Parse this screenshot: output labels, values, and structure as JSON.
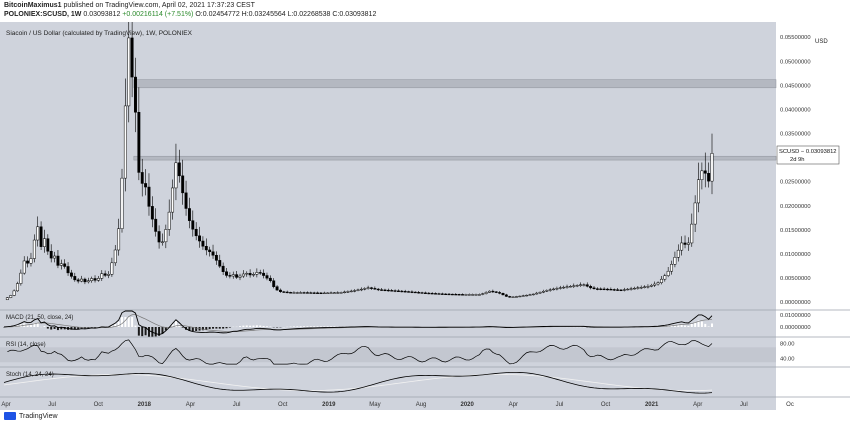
{
  "header": {
    "line1_author": "BitcoinMaximus1",
    "line1_rest": "published on TradingView.com, April 02, 2021 17:37:23 CEST",
    "symbol": "POLONIEX:SCUSD, 1W",
    "price": "0.03093812",
    "change": "+0.00216114 (+7.51%)",
    "ohlc": "O:0.02454772 H:0.03245564 L:0.02268538 C:0.03093812"
  },
  "footer": {
    "brand": "TradingView"
  },
  "colors": {
    "bg": "#cfd3dc",
    "zone": "#b4b8c1",
    "candle": "#000000",
    "hist": "#ffffff",
    "line": "#000000"
  },
  "chart_data": [
    {
      "type": "candlestick",
      "title": "Siacoin / US Dollar (calculated by TradingView), 1W, POLONIEX",
      "price_label": "SCUSD − 0.03093812",
      "price_sublabel": "2d 9h",
      "last_price": 0.03093812,
      "ylim": [
        -0.001,
        0.0565
      ],
      "y_ticks": [
        {
          "v": 0.055,
          "label": "0.05500000"
        },
        {
          "v": 0.05,
          "label": "0.05000000"
        },
        {
          "v": 0.045,
          "label": "0.04500000"
        },
        {
          "v": 0.04,
          "label": "0.04000000"
        },
        {
          "v": 0.035,
          "label": "0.03500000"
        },
        {
          "v": 0.025,
          "label": "0.02500000"
        },
        {
          "v": 0.02,
          "label": "0.02000000"
        },
        {
          "v": 0.015,
          "label": "0.01500000"
        },
        {
          "v": 0.01,
          "label": "0.01000000"
        },
        {
          "v": 0.005,
          "label": "0.00500000"
        },
        {
          "v": 0.0,
          "label": "0.00000000"
        }
      ],
      "currency_label": "USD",
      "resistance_zones": [
        [
          0.0445,
          0.0462
        ],
        [
          0.0295,
          0.0303
        ]
      ],
      "x_ticks": [
        "Apr",
        "Jul",
        "Oct",
        "2018",
        "Apr",
        "Jul",
        "Oct",
        "2019",
        "May",
        "Aug",
        "2020",
        "Apr",
        "Jul",
        "Oct",
        "2021",
        "Apr",
        "Jul",
        "Oc"
      ],
      "series": [
        {
          "t": 0,
          "v": 0.0005
        },
        {
          "t": 0.25,
          "v": 0.0008
        },
        {
          "t": 0.8,
          "v": 0.0015
        },
        {
          "t": 1.3,
          "v": 0.003
        },
        {
          "t": 1.8,
          "v": 0.006
        },
        {
          "t": 2.3,
          "v": 0.0095
        },
        {
          "t": 2.7,
          "v": 0.007
        },
        {
          "t": 3.2,
          "v": 0.0125
        },
        {
          "t": 3.6,
          "v": 0.0158
        },
        {
          "t": 3.9,
          "v": 0.0112
        },
        {
          "t": 4.4,
          "v": 0.0135
        },
        {
          "t": 4.9,
          "v": 0.0085
        },
        {
          "t": 5.3,
          "v": 0.0102
        },
        {
          "t": 5.8,
          "v": 0.0075
        },
        {
          "t": 6.3,
          "v": 0.0082
        },
        {
          "t": 6.8,
          "v": 0.0062
        },
        {
          "t": 7.3,
          "v": 0.0052
        },
        {
          "t": 7.8,
          "v": 0.0042
        },
        {
          "t": 8.3,
          "v": 0.0048
        },
        {
          "t": 8.8,
          "v": 0.004
        },
        {
          "t": 9.3,
          "v": 0.005
        },
        {
          "t": 9.9,
          "v": 0.0044
        },
        {
          "t": 10.5,
          "v": 0.006
        },
        {
          "t": 11.1,
          "v": 0.0052
        },
        {
          "t": 11.6,
          "v": 0.0085
        },
        {
          "t": 12.0,
          "v": 0.0115
        },
        {
          "t": 12.4,
          "v": 0.017
        },
        {
          "t": 12.8,
          "v": 0.032
        },
        {
          "t": 13.1,
          "v": 0.0455
        },
        {
          "t": 13.4,
          "v": 0.0565
        },
        {
          "t": 13.7,
          "v": 0.047
        },
        {
          "t": 14.0,
          "v": 0.042
        },
        {
          "t": 14.3,
          "v": 0.032
        },
        {
          "t": 14.6,
          "v": 0.021
        },
        {
          "t": 14.9,
          "v": 0.0265
        },
        {
          "t": 15.2,
          "v": 0.0235
        },
        {
          "t": 15.6,
          "v": 0.019
        },
        {
          "t": 16.0,
          "v": 0.0165
        },
        {
          "t": 16.4,
          "v": 0.0135
        },
        {
          "t": 16.8,
          "v": 0.0115
        },
        {
          "t": 17.2,
          "v": 0.014
        },
        {
          "t": 17.6,
          "v": 0.0175
        },
        {
          "t": 18.0,
          "v": 0.023
        },
        {
          "t": 18.4,
          "v": 0.029
        },
        {
          "t": 18.8,
          "v": 0.026
        },
        {
          "t": 19.2,
          "v": 0.022
        },
        {
          "t": 19.6,
          "v": 0.0185
        },
        {
          "t": 20.0,
          "v": 0.016
        },
        {
          "t": 20.5,
          "v": 0.014
        },
        {
          "t": 21.0,
          "v": 0.0125
        },
        {
          "t": 21.5,
          "v": 0.011
        },
        {
          "t": 22.0,
          "v": 0.0105
        },
        {
          "t": 22.5,
          "v": 0.0095
        },
        {
          "t": 23.0,
          "v": 0.0078
        },
        {
          "t": 23.5,
          "v": 0.0062
        },
        {
          "t": 24.0,
          "v": 0.0052
        },
        {
          "t": 24.5,
          "v": 0.0058
        },
        {
          "t": 25.0,
          "v": 0.005
        },
        {
          "t": 25.5,
          "v": 0.0058
        },
        {
          "t": 26.0,
          "v": 0.006
        },
        {
          "t": 26.5,
          "v": 0.0055
        },
        {
          "t": 27.0,
          "v": 0.0062
        },
        {
          "t": 27.5,
          "v": 0.006
        },
        {
          "t": 28.0,
          "v": 0.0052
        },
        {
          "t": 28.5,
          "v": 0.0045
        },
        {
          "t": 29.0,
          "v": 0.0028
        },
        {
          "t": 29.5,
          "v": 0.0022
        },
        {
          "t": 30.5,
          "v": 0.002
        },
        {
          "t": 32.0,
          "v": 0.002
        },
        {
          "t": 34.0,
          "v": 0.0019
        },
        {
          "t": 36.0,
          "v": 0.002
        },
        {
          "t": 37.5,
          "v": 0.0024
        },
        {
          "t": 39.0,
          "v": 0.003
        },
        {
          "t": 40.0,
          "v": 0.0026
        },
        {
          "t": 41.5,
          "v": 0.0024
        },
        {
          "t": 43.0,
          "v": 0.0022
        },
        {
          "t": 45.0,
          "v": 0.0019
        },
        {
          "t": 47.0,
          "v": 0.0017
        },
        {
          "t": 49.0,
          "v": 0.0016
        },
        {
          "t": 51.0,
          "v": 0.0016
        },
        {
          "t": 52.0,
          "v": 0.0023
        },
        {
          "t": 53.0,
          "v": 0.0019
        },
        {
          "t": 54.0,
          "v": 0.001
        },
        {
          "t": 55.0,
          "v": 0.0012
        },
        {
          "t": 56.5,
          "v": 0.0016
        },
        {
          "t": 58.0,
          "v": 0.0024
        },
        {
          "t": 59.5,
          "v": 0.003
        },
        {
          "t": 61.0,
          "v": 0.0034
        },
        {
          "t": 62.0,
          "v": 0.0037
        },
        {
          "t": 63.0,
          "v": 0.0028
        },
        {
          "t": 64.5,
          "v": 0.0027
        },
        {
          "t": 66.0,
          "v": 0.0025
        },
        {
          "t": 67.5,
          "v": 0.0029
        },
        {
          "t": 69.0,
          "v": 0.0033
        },
        {
          "t": 70.0,
          "v": 0.004
        },
        {
          "t": 71.0,
          "v": 0.006
        },
        {
          "t": 72.0,
          "v": 0.01
        },
        {
          "t": 72.6,
          "v": 0.0125
        },
        {
          "t": 73.2,
          "v": 0.0115
        },
        {
          "t": 73.8,
          "v": 0.018
        },
        {
          "t": 74.4,
          "v": 0.026
        },
        {
          "t": 74.9,
          "v": 0.028
        },
        {
          "t": 75.4,
          "v": 0.0245
        },
        {
          "t": 75.8,
          "v": 0.0309
        }
      ]
    },
    {
      "type": "line",
      "title": "MACD (21, 50, close, 24)",
      "y_ticks": [
        {
          "v": 0.01,
          "label": "0.01000000"
        },
        {
          "v": 0,
          "label": "0.00000000"
        }
      ],
      "note": "histogram + signal lines"
    },
    {
      "type": "line",
      "title": "RSI (14, close)",
      "y_ticks": [
        {
          "v": 80,
          "label": "80.00"
        },
        {
          "v": 40,
          "label": "40.00"
        }
      ],
      "ylim": [
        20,
        95
      ]
    },
    {
      "type": "line",
      "title": "Stoch (14, 24, 24)",
      "ylim": [
        0,
        100
      ]
    }
  ]
}
